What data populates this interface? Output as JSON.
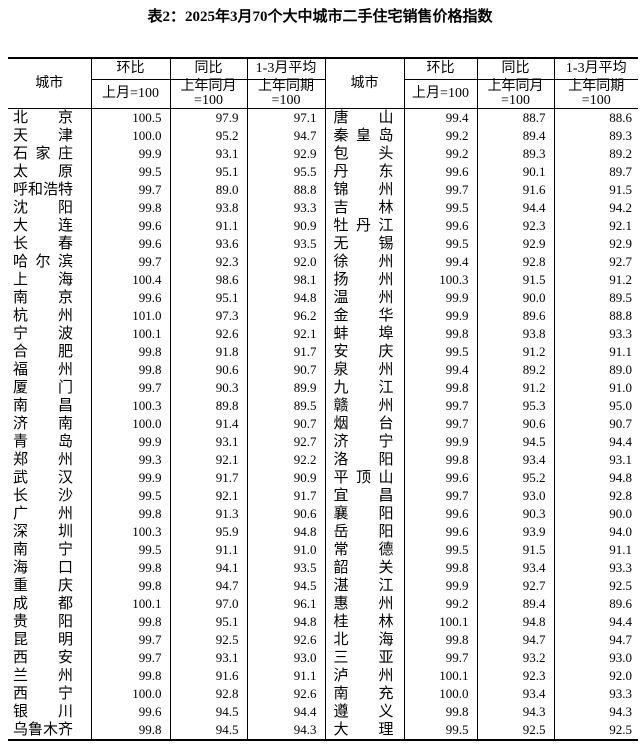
{
  "title": "表2：2025年3月70个大中城市二手住宅销售价格指数",
  "table": {
    "headers": {
      "city": "城市",
      "mom": "环比",
      "mom_sub": "上月=100",
      "yoy": "同比",
      "yoy_sub_line1": "上年同月",
      "yoy_sub_line2": "=100",
      "avg": "1-3月平均",
      "avg_sub_line1": "上年同期",
      "avg_sub_line2": "=100"
    },
    "rows": [
      [
        "北京",
        "100.5",
        "97.9",
        "97.1",
        "唐山",
        "99.4",
        "88.7",
        "88.6"
      ],
      [
        "天津",
        "100.0",
        "95.2",
        "94.7",
        "秦皇岛",
        "99.2",
        "89.4",
        "89.3"
      ],
      [
        "石家庄",
        "99.9",
        "93.1",
        "92.9",
        "包头",
        "99.2",
        "89.3",
        "89.2"
      ],
      [
        "太原",
        "99.5",
        "95.1",
        "95.5",
        "丹东",
        "99.6",
        "90.1",
        "89.7"
      ],
      [
        "呼和浩特",
        "99.7",
        "89.0",
        "88.8",
        "锦州",
        "99.7",
        "91.6",
        "91.5"
      ],
      [
        "沈阳",
        "99.8",
        "93.8",
        "93.3",
        "吉林",
        "99.5",
        "94.4",
        "94.2"
      ],
      [
        "大连",
        "99.6",
        "91.1",
        "90.9",
        "牡丹江",
        "99.6",
        "92.3",
        "92.1"
      ],
      [
        "长春",
        "99.6",
        "93.6",
        "93.5",
        "无锡",
        "99.5",
        "92.9",
        "92.9"
      ],
      [
        "哈尔滨",
        "99.7",
        "92.3",
        "92.0",
        "徐州",
        "99.4",
        "92.8",
        "92.7"
      ],
      [
        "上海",
        "100.4",
        "98.6",
        "98.1",
        "扬州",
        "100.3",
        "91.5",
        "91.2"
      ],
      [
        "南京",
        "99.6",
        "95.1",
        "94.8",
        "温州",
        "99.9",
        "90.0",
        "89.5"
      ],
      [
        "杭州",
        "101.0",
        "97.3",
        "96.2",
        "金华",
        "99.9",
        "89.6",
        "88.8"
      ],
      [
        "宁波",
        "100.1",
        "92.6",
        "92.1",
        "蚌埠",
        "99.8",
        "93.8",
        "93.3"
      ],
      [
        "合肥",
        "99.8",
        "91.8",
        "91.7",
        "安庆",
        "99.5",
        "91.2",
        "91.1"
      ],
      [
        "福州",
        "99.8",
        "90.6",
        "90.7",
        "泉州",
        "99.4",
        "89.2",
        "89.0"
      ],
      [
        "厦门",
        "99.7",
        "90.3",
        "89.9",
        "九江",
        "99.8",
        "91.2",
        "91.0"
      ],
      [
        "南昌",
        "100.3",
        "89.8",
        "89.5",
        "赣州",
        "99.7",
        "95.3",
        "95.0"
      ],
      [
        "济南",
        "100.0",
        "91.4",
        "90.7",
        "烟台",
        "99.7",
        "90.6",
        "90.7"
      ],
      [
        "青岛",
        "99.9",
        "93.1",
        "92.7",
        "济宁",
        "99.9",
        "94.5",
        "94.4"
      ],
      [
        "郑州",
        "99.3",
        "92.1",
        "92.2",
        "洛阳",
        "99.8",
        "93.4",
        "93.1"
      ],
      [
        "武汉",
        "99.9",
        "91.7",
        "90.9",
        "平顶山",
        "99.6",
        "95.2",
        "94.8"
      ],
      [
        "长沙",
        "99.5",
        "92.1",
        "91.7",
        "宜昌",
        "99.7",
        "93.0",
        "92.8"
      ],
      [
        "广州",
        "99.8",
        "91.3",
        "90.6",
        "襄阳",
        "99.6",
        "90.3",
        "90.0"
      ],
      [
        "深圳",
        "100.3",
        "95.9",
        "94.8",
        "岳阳",
        "99.6",
        "93.9",
        "94.0"
      ],
      [
        "南宁",
        "99.5",
        "91.1",
        "91.0",
        "常德",
        "99.5",
        "91.5",
        "91.1"
      ],
      [
        "海口",
        "99.8",
        "94.1",
        "93.5",
        "韶关",
        "99.8",
        "93.4",
        "93.3"
      ],
      [
        "重庆",
        "99.8",
        "94.7",
        "94.5",
        "湛江",
        "99.9",
        "92.7",
        "92.5"
      ],
      [
        "成都",
        "100.1",
        "97.0",
        "96.1",
        "惠州",
        "99.2",
        "89.4",
        "89.6"
      ],
      [
        "贵阳",
        "99.8",
        "95.1",
        "94.8",
        "桂林",
        "100.1",
        "94.8",
        "94.4"
      ],
      [
        "昆明",
        "99.7",
        "92.5",
        "92.6",
        "北海",
        "99.8",
        "94.7",
        "94.7"
      ],
      [
        "西安",
        "99.7",
        "93.1",
        "93.0",
        "三亚",
        "99.7",
        "93.2",
        "93.0"
      ],
      [
        "兰州",
        "99.8",
        "91.6",
        "91.1",
        "泸州",
        "100.1",
        "92.3",
        "92.0"
      ],
      [
        "西宁",
        "100.0",
        "92.8",
        "92.6",
        "南充",
        "100.0",
        "93.4",
        "93.3"
      ],
      [
        "银川",
        "99.6",
        "94.5",
        "94.4",
        "遵义",
        "99.8",
        "94.3",
        "94.3"
      ],
      [
        "乌鲁木齐",
        "99.8",
        "94.5",
        "94.3",
        "大理",
        "99.5",
        "92.5",
        "92.5"
      ]
    ]
  }
}
